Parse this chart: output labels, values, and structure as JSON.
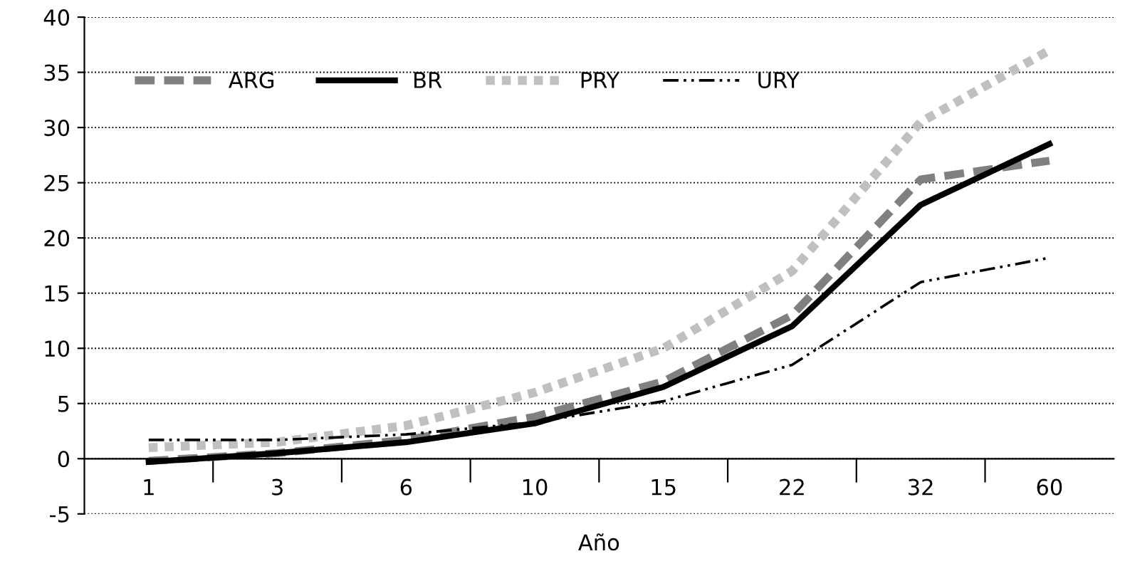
{
  "chart_data": {
    "type": "line",
    "xlabel": "Año",
    "categories": [
      "1",
      "3",
      "6",
      "10",
      "15",
      "22",
      "32",
      "60"
    ],
    "ylim": [
      -5,
      40
    ],
    "yticks": [
      -5,
      0,
      5,
      10,
      15,
      20,
      25,
      30,
      35,
      40
    ],
    "grid": "y",
    "legend": "top left",
    "marker": "none",
    "series": [
      {
        "name": "ARG",
        "color": "#808080",
        "line_style": "dashed",
        "values": [
          -0.2,
          0.5,
          1.7,
          3.8,
          7,
          13,
          25.3,
          27
        ]
      },
      {
        "name": "BR",
        "color": "#000000",
        "line_style": "solid",
        "values": [
          -0.3,
          0.5,
          1.5,
          3.2,
          6.5,
          12,
          23,
          28.5
        ]
      },
      {
        "name": "PRY",
        "color": "#c0c0c0",
        "line_style": "dotted",
        "values": [
          1.0,
          1.5,
          3.0,
          6,
          10,
          17,
          30.5,
          37
        ]
      },
      {
        "name": "URY",
        "color": "#000000",
        "line_style": "dashdot",
        "values": [
          1.7,
          1.7,
          2.2,
          3.3,
          5.2,
          8.5,
          16,
          18.2
        ]
      }
    ]
  }
}
